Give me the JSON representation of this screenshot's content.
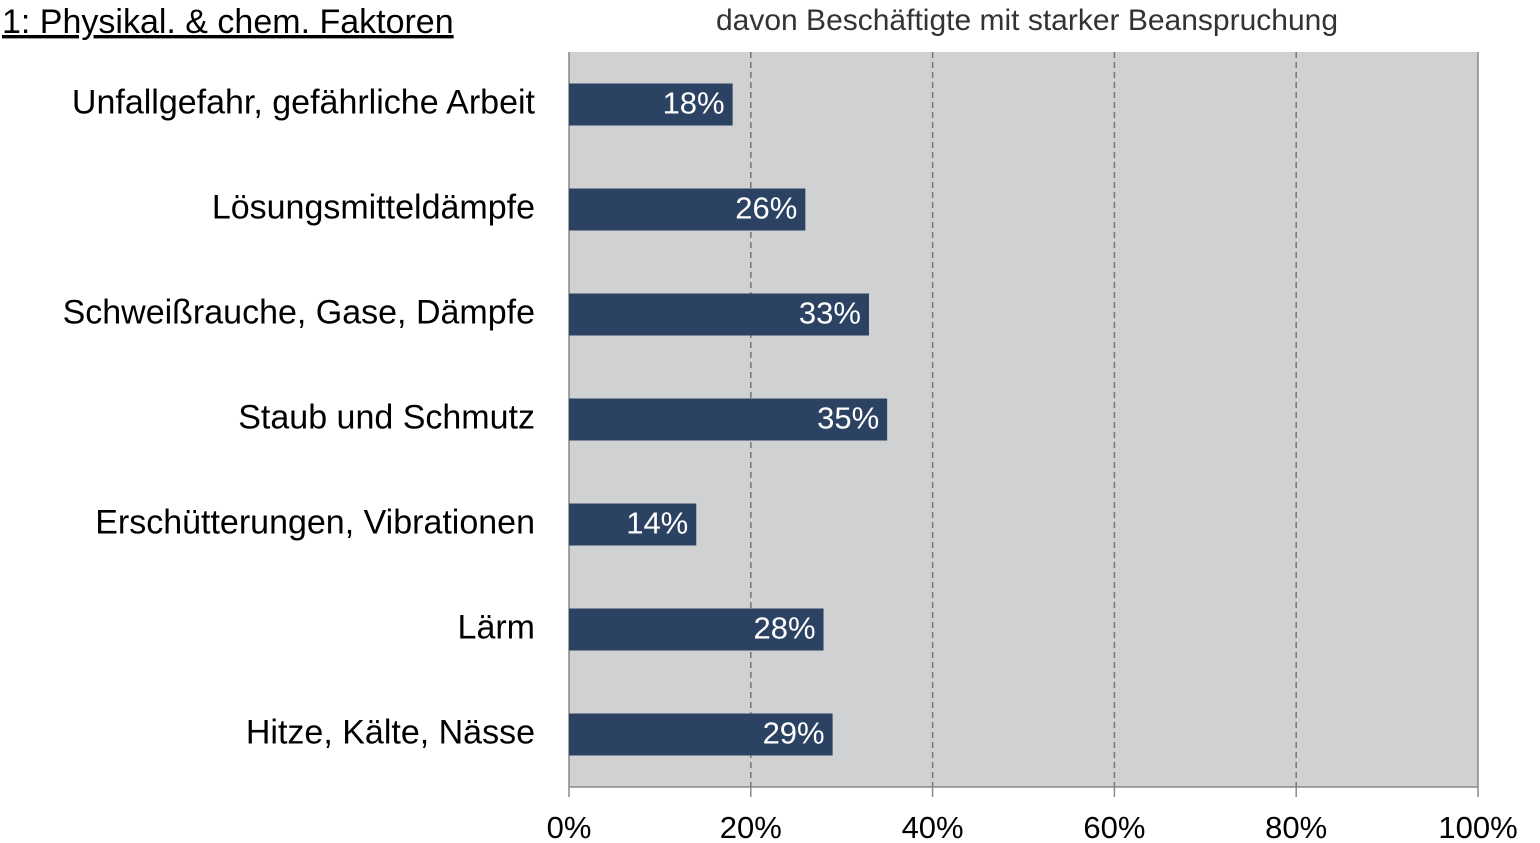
{
  "chart_data": {
    "type": "bar",
    "orientation": "horizontal",
    "title": "1: Physikal. & chem. Faktoren",
    "subtitle": "davon Beschäftigte mit starker Beanspruchung",
    "categories": [
      "Unfallgefahr, gefährliche Arbeit",
      "Lösungsmitteldämpfe",
      "Schweißrauche, Gase, Dämpfe",
      "Staub und Schmutz",
      "Erschütterungen, Vibrationen",
      "Lärm",
      "Hitze, Kälte, Nässe"
    ],
    "values": [
      18,
      26,
      33,
      35,
      14,
      28,
      29
    ],
    "value_labels": [
      "18%",
      "26%",
      "33%",
      "35%",
      "14%",
      "28%",
      "29%"
    ],
    "color": "#2c4263",
    "xlim": [
      0,
      100
    ],
    "xticks": [
      {
        "value": 0,
        "label": "0%"
      },
      {
        "value": 20,
        "label": "20%"
      },
      {
        "value": 40,
        "label": "40%"
      },
      {
        "value": 60,
        "label": "60%"
      },
      {
        "value": 80,
        "label": "80%"
      },
      {
        "value": 100,
        "label": "100%"
      }
    ],
    "grid": true
  }
}
